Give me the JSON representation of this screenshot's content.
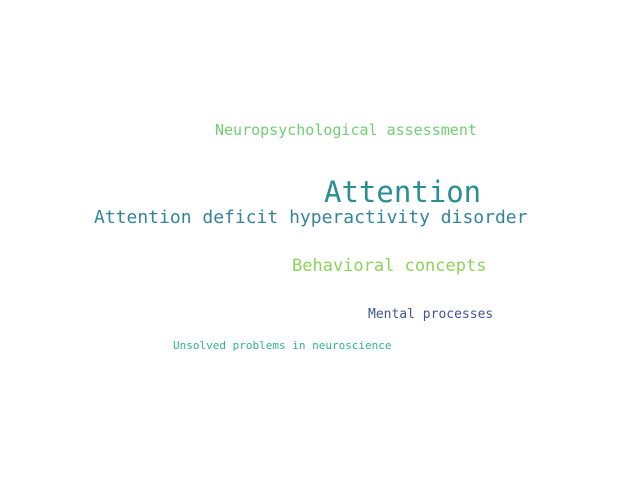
{
  "word_cloud": {
    "words": [
      {
        "text": "Neuropsychological assessment",
        "color": "#6fcf72"
      },
      {
        "text": "Attention",
        "color": "#2a8f93"
      },
      {
        "text": "Attention deficit hyperactivity disorder",
        "color": "#34849a"
      },
      {
        "text": "Behavioral concepts",
        "color": "#8bd45a"
      },
      {
        "text": "Mental processes",
        "color": "#41559a"
      },
      {
        "text": "Unsolved problems in neuroscience",
        "color": "#2fb586"
      }
    ]
  }
}
